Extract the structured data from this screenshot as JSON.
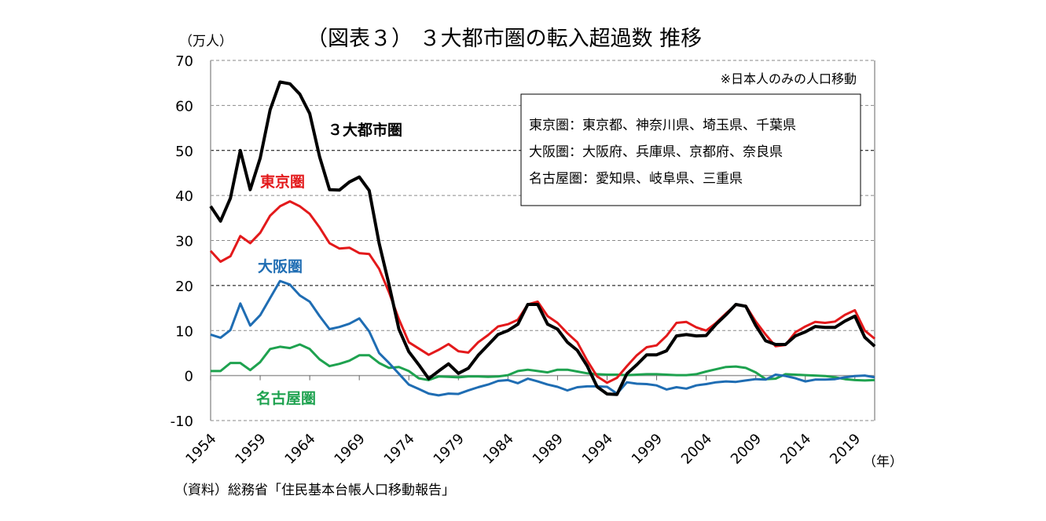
{
  "chart_data": {
    "type": "line",
    "title": "（図表３） ３大都市圏の転入超過数  推移",
    "ylabel": "（万人）",
    "xlabel": "（年）",
    "ylim": [
      -10,
      70
    ],
    "yticks": [
      -10,
      0,
      10,
      20,
      30,
      40,
      50,
      60,
      70
    ],
    "xlim": [
      1954,
      2021
    ],
    "xticks": [
      1954,
      1959,
      1964,
      1969,
      1974,
      1979,
      1984,
      1989,
      1994,
      1999,
      2004,
      2009,
      2014,
      2019
    ],
    "grid": true,
    "note": "※日本人のみの人口移動",
    "legend_box": [
      "東京圏：東京都、神奈川県、埼玉県、千葉県",
      "大阪圏：大阪府、兵庫県、京都府、奈良県",
      "名古屋圏：愛知県、岐阜県、三重県"
    ],
    "source": "（資料）総務省「住民基本台帳人口移動報告」",
    "x": [
      1954,
      1955,
      1956,
      1957,
      1958,
      1959,
      1960,
      1961,
      1962,
      1963,
      1964,
      1965,
      1966,
      1967,
      1968,
      1969,
      1970,
      1971,
      1972,
      1973,
      1974,
      1975,
      1976,
      1977,
      1978,
      1979,
      1980,
      1981,
      1982,
      1983,
      1984,
      1985,
      1986,
      1987,
      1988,
      1989,
      1990,
      1991,
      1992,
      1993,
      1994,
      1995,
      1996,
      1997,
      1998,
      1999,
      2000,
      2001,
      2002,
      2003,
      2004,
      2005,
      2006,
      2007,
      2008,
      2009,
      2010,
      2011,
      2012,
      2013,
      2014,
      2015,
      2016,
      2017,
      2018,
      2019,
      2020,
      2021
    ],
    "series": [
      {
        "name": "３大都市圏",
        "color": "#000000",
        "values": [
          37.6,
          34.3,
          39.4,
          50.0,
          41.3,
          48.3,
          59.0,
          65.2,
          64.8,
          62.5,
          58.2,
          48.6,
          41.3,
          41.2,
          43.0,
          44.1,
          41.1,
          29.4,
          20.2,
          10.3,
          5.3,
          2.4,
          -0.7,
          1.0,
          2.6,
          0.5,
          1.6,
          4.5,
          6.8,
          9.1,
          10.0,
          11.4,
          15.8,
          15.8,
          11.4,
          10.3,
          7.4,
          5.6,
          2.1,
          -2.5,
          -4.1,
          -4.2,
          0.4,
          2.4,
          4.6,
          4.6,
          5.5,
          8.8,
          9.1,
          8.8,
          8.9,
          11.4,
          13.5,
          15.8,
          15.4,
          11.1,
          7.7,
          6.9,
          6.9,
          8.8,
          9.7,
          10.9,
          10.7,
          10.7,
          12.1,
          13.2,
          8.5,
          6.5
        ]
      },
      {
        "name": "東京圏",
        "color": "#e3191b",
        "values": [
          27.7,
          25.3,
          26.5,
          31.0,
          29.4,
          31.7,
          35.5,
          37.6,
          38.7,
          37.6,
          35.9,
          32.9,
          29.4,
          28.2,
          28.4,
          27.2,
          27.0,
          23.7,
          18.5,
          12.5,
          7.4,
          6.0,
          4.6,
          5.7,
          7.0,
          5.4,
          5.1,
          7.4,
          9.0,
          10.9,
          11.4,
          12.4,
          15.8,
          16.4,
          13.2,
          11.7,
          9.4,
          7.4,
          3.3,
          -0.2,
          -1.6,
          -0.5,
          2.1,
          4.5,
          6.3,
          6.7,
          8.8,
          11.7,
          11.9,
          10.7,
          10.0,
          11.7,
          13.8,
          15.7,
          15.5,
          12.0,
          9.1,
          6.5,
          6.8,
          9.6,
          10.9,
          11.9,
          11.7,
          12.0,
          13.5,
          14.5,
          10.0,
          8.2
        ]
      },
      {
        "name": "大阪圏",
        "color": "#1f6db3",
        "values": [
          9.1,
          8.4,
          10.1,
          16.0,
          11.1,
          13.4,
          17.2,
          21.0,
          20.2,
          17.8,
          16.4,
          13.2,
          10.3,
          10.8,
          11.5,
          12.7,
          9.8,
          5.0,
          2.8,
          0.4,
          -2.0,
          -3.0,
          -4.0,
          -4.4,
          -4.0,
          -4.1,
          -3.3,
          -2.6,
          -2.0,
          -1.2,
          -1.0,
          -1.7,
          -0.7,
          -1.3,
          -2.0,
          -2.5,
          -3.3,
          -2.6,
          -2.4,
          -2.4,
          -2.5,
          -4.0,
          -1.5,
          -1.8,
          -1.9,
          -2.2,
          -3.1,
          -2.6,
          -2.9,
          -2.2,
          -1.9,
          -1.5,
          -1.3,
          -1.4,
          -1.1,
          -0.8,
          -0.9,
          0.2,
          -0.1,
          -0.6,
          -1.3,
          -0.9,
          -0.9,
          -0.8,
          -0.4,
          -0.1,
          0.0,
          -0.4
        ]
      },
      {
        "name": "名古屋圏",
        "color": "#1ea24f",
        "values": [
          1.0,
          1.0,
          2.8,
          2.8,
          1.2,
          3.0,
          5.9,
          6.4,
          6.1,
          6.9,
          5.9,
          3.6,
          2.1,
          2.6,
          3.3,
          4.5,
          4.5,
          2.8,
          1.7,
          1.9,
          1.0,
          -0.6,
          -1.0,
          -0.2,
          -0.3,
          -0.4,
          -0.2,
          -0.2,
          -0.3,
          -0.2,
          0.1,
          1.0,
          1.3,
          1.0,
          0.7,
          1.3,
          1.3,
          0.9,
          0.5,
          0.3,
          0.2,
          0.2,
          0.1,
          0.2,
          0.3,
          0.3,
          0.2,
          0.1,
          0.1,
          0.3,
          0.9,
          1.4,
          1.9,
          2.0,
          1.7,
          0.7,
          -0.8,
          -0.7,
          0.3,
          0.2,
          0.1,
          0.0,
          -0.1,
          -0.4,
          -0.8,
          -1.0,
          -1.1,
          -1.0
        ]
      }
    ],
    "series_labels": [
      {
        "text": "３大都市圏",
        "series": 0
      },
      {
        "text": "東京圏",
        "series": 1
      },
      {
        "text": "大阪圏",
        "series": 2
      },
      {
        "text": "名古屋圏",
        "series": 3
      }
    ]
  }
}
